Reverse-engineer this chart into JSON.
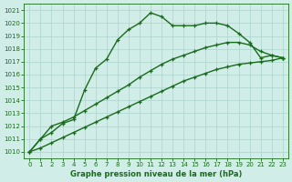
{
  "line1": {
    "x": [
      0,
      1,
      2,
      3,
      4,
      5,
      6,
      7,
      8,
      9,
      10,
      11,
      12,
      13,
      14,
      15,
      16,
      17,
      18,
      19,
      20,
      21,
      22,
      23
    ],
    "y": [
      1010.0,
      1011.0,
      1011.5,
      1012.2,
      1012.5,
      1014.8,
      1016.5,
      1017.2,
      1018.7,
      1019.5,
      1020.0,
      1020.8,
      1020.5,
      1019.8,
      1019.8,
      1019.8,
      1020.0,
      1020.0,
      1019.8,
      1019.2,
      1018.5,
      1017.3,
      1017.5,
      1017.3
    ]
  },
  "line2": {
    "x": [
      0,
      1,
      2,
      3,
      4,
      5,
      6,
      7,
      8,
      9,
      10,
      11,
      12,
      13,
      14,
      15,
      16,
      17,
      18,
      19,
      20,
      21,
      22,
      23
    ],
    "y": [
      1010.0,
      1011.0,
      1012.0,
      1012.3,
      1012.7,
      1013.2,
      1013.7,
      1014.2,
      1014.7,
      1015.2,
      1015.8,
      1016.3,
      1016.8,
      1017.2,
      1017.5,
      1017.8,
      1018.1,
      1018.3,
      1018.5,
      1018.5,
      1018.3,
      1017.8,
      1017.5,
      1017.3
    ]
  },
  "line3": {
    "x": [
      0,
      1,
      2,
      3,
      4,
      5,
      6,
      7,
      8,
      9,
      10,
      11,
      12,
      13,
      14,
      15,
      16,
      17,
      18,
      19,
      20,
      21,
      22,
      23
    ],
    "y": [
      1010.0,
      1010.3,
      1010.7,
      1011.1,
      1011.5,
      1011.9,
      1012.3,
      1012.7,
      1013.1,
      1013.5,
      1013.9,
      1014.3,
      1014.7,
      1015.1,
      1015.5,
      1015.8,
      1016.1,
      1016.4,
      1016.6,
      1016.8,
      1016.9,
      1017.0,
      1017.1,
      1017.3
    ]
  },
  "line_color": "#1a6b1a",
  "bg_color": "#d0ede8",
  "grid_color": "#aad4cc",
  "ylim": [
    1009.5,
    1021.5
  ],
  "xlim": [
    -0.5,
    23.5
  ],
  "yticks": [
    1010,
    1011,
    1012,
    1013,
    1014,
    1015,
    1016,
    1017,
    1018,
    1019,
    1020,
    1021
  ],
  "xticks": [
    0,
    1,
    2,
    3,
    4,
    5,
    6,
    7,
    8,
    9,
    10,
    11,
    12,
    13,
    14,
    15,
    16,
    17,
    18,
    19,
    20,
    21,
    22,
    23
  ],
  "xlabel": "Graphe pression niveau de la mer (hPa)",
  "title_color": "#1a6b1a",
  "tick_color": "#1a6b1a",
  "marker": "+",
  "marker_size": 3.5,
  "linewidth": 1.0
}
